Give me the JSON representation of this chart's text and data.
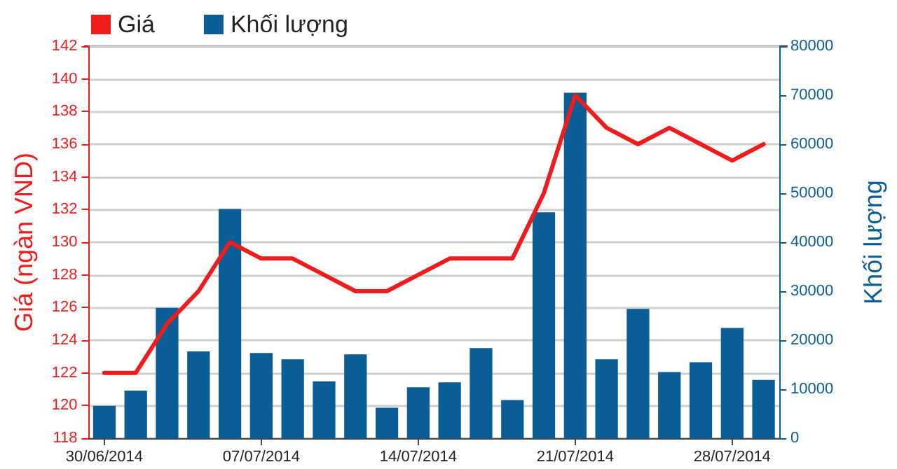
{
  "chart_data": {
    "type": "bar",
    "categories": [
      "30/06/2014",
      null,
      null,
      null,
      null,
      "07/07/2014",
      null,
      null,
      null,
      null,
      "14/07/2014",
      null,
      null,
      null,
      null,
      "21/07/2014",
      null,
      null,
      null,
      null,
      "28/07/2014",
      null
    ],
    "ylabel": "Giá (ngàn VND)",
    "y2label": "Khối lượng",
    "series": [
      {
        "name": "Giá",
        "type": "line",
        "color": "#ee1c1c",
        "values": [
          122,
          122,
          125,
          127,
          130,
          129,
          129,
          128,
          127,
          127,
          128,
          129,
          129,
          129,
          133,
          139,
          137,
          136,
          137,
          136,
          135,
          136
        ]
      },
      {
        "name": "Khối lượng",
        "axis": "y2",
        "color": "#0b5d96",
        "values": [
          6600,
          9700,
          26600,
          17700,
          46800,
          17400,
          16100,
          11600,
          17100,
          6200,
          10400,
          11400,
          18400,
          7800,
          46100,
          70500,
          16100,
          26400,
          13500,
          15500,
          22500,
          11900
        ]
      }
    ],
    "ylim": [
      118,
      142
    ],
    "yticks": [
      118,
      120,
      122,
      124,
      126,
      128,
      130,
      132,
      134,
      136,
      138,
      140,
      142
    ],
    "y2lim": [
      0,
      80000
    ],
    "y2ticks": [
      0,
      10000,
      20000,
      30000,
      40000,
      50000,
      60000,
      70000,
      80000
    ],
    "grid": "y",
    "legend": "top left",
    "marker": "none",
    "line_style": "solid"
  }
}
